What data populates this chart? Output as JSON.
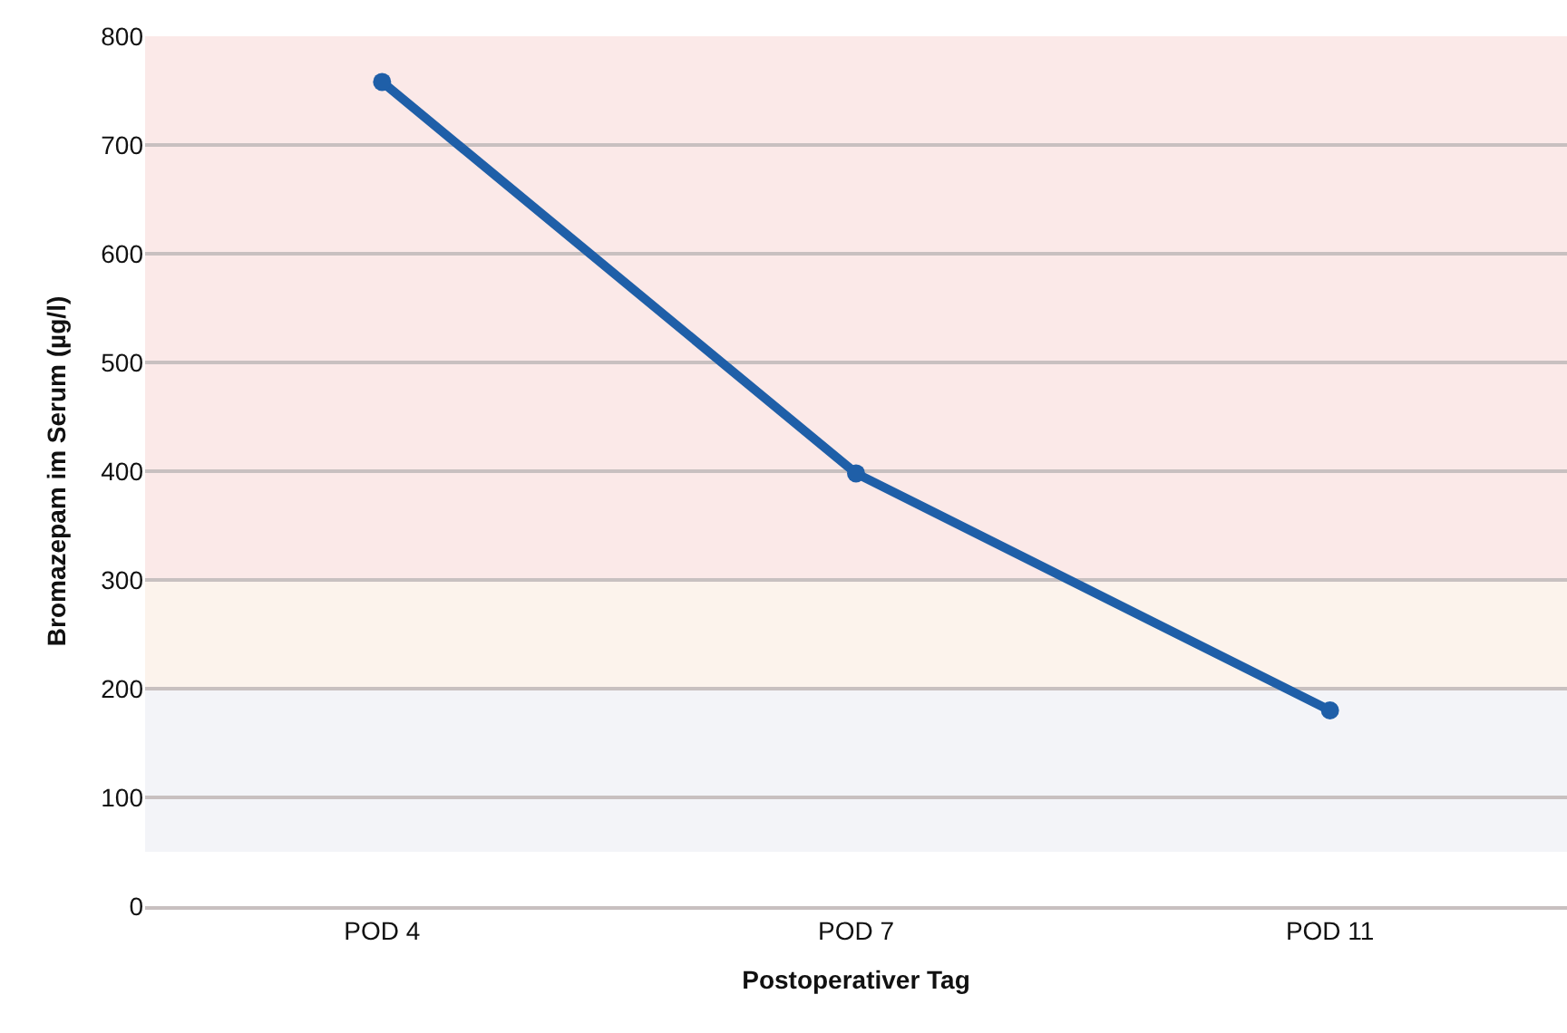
{
  "chart_data": {
    "type": "line",
    "xlabel": "Postoperativer Tag",
    "ylabel": "Bromazepam im Serum (µg/l)",
    "categories": [
      "POD 4",
      "POD 7",
      "POD 11"
    ],
    "series": [
      {
        "color": "#1f5fa8",
        "values": [
          758,
          398,
          180
        ]
      }
    ],
    "ylim": [
      0,
      800
    ],
    "yticks": [
      0,
      100,
      200,
      300,
      400,
      500,
      600,
      700,
      800
    ],
    "grid": "y",
    "marker": "circle",
    "line_style": "solid",
    "bands": [
      {
        "axis": "y",
        "from": 50,
        "to": 200,
        "color": "#f3f4f8"
      },
      {
        "axis": "y",
        "from": 200,
        "to": 300,
        "color": "#fcf3ec"
      },
      {
        "axis": "y",
        "from": 300,
        "to": 800,
        "color": "#fbe9e8"
      }
    ]
  }
}
